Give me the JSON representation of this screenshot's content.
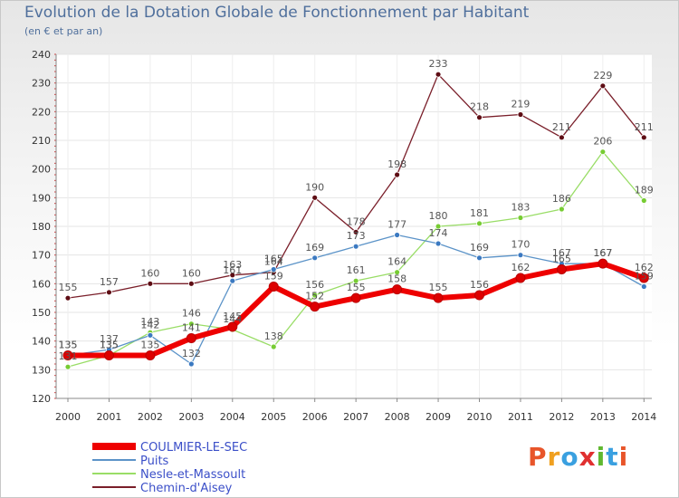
{
  "header": {
    "title": "Evolution de la Dotation Globale de Fonctionnement par Habitant",
    "subtitle": "(en € et par an)"
  },
  "brand": {
    "letters": [
      "P",
      "r",
      "o",
      "x",
      "i",
      "t",
      "i"
    ]
  },
  "chart_data": {
    "type": "line",
    "title": "Evolution de la Dotation Globale de Fonctionnement par Habitant",
    "subtitle": "(en € et par an)",
    "xlabel": "",
    "ylabel": "",
    "x": [
      "2000",
      "2001",
      "2002",
      "2003",
      "2004",
      "2005",
      "2006",
      "2007",
      "2008",
      "2009",
      "2010",
      "2011",
      "2012",
      "2013",
      "2014"
    ],
    "ylim": [
      120,
      240
    ],
    "yticks": [
      120,
      130,
      140,
      150,
      160,
      170,
      180,
      190,
      200,
      210,
      220,
      230,
      240
    ],
    "legend_position": "bottom-left",
    "series": [
      {
        "name": "Chemin-d'Aisey",
        "color": "#7a1f2a",
        "marker_color": "#5e0d14",
        "values": [
          155,
          157,
          160,
          160,
          163,
          164,
          190,
          178,
          198,
          233,
          218,
          219,
          211,
          229,
          211
        ]
      },
      {
        "name": "Nesle-et-Massoult",
        "color": "#99dd66",
        "marker_color": "#77cc33",
        "values": [
          131,
          135,
          143,
          146,
          144,
          138,
          156,
          161,
          164,
          180,
          181,
          183,
          186,
          206,
          189
        ]
      },
      {
        "name": "Puits",
        "color": "#5b93c8",
        "marker_color": "#3b79c1",
        "values": [
          135,
          137,
          142,
          132,
          161,
          165,
          169,
          173,
          177,
          174,
          169,
          170,
          167,
          167,
          159
        ]
      },
      {
        "name": "COULMIER-LE-SEC",
        "color": "#ee0000",
        "marker_color": "#dd0000",
        "values": [
          135,
          135,
          135,
          141,
          145,
          159,
          152,
          155,
          158,
          155,
          156,
          162,
          165,
          167,
          162
        ]
      }
    ]
  }
}
